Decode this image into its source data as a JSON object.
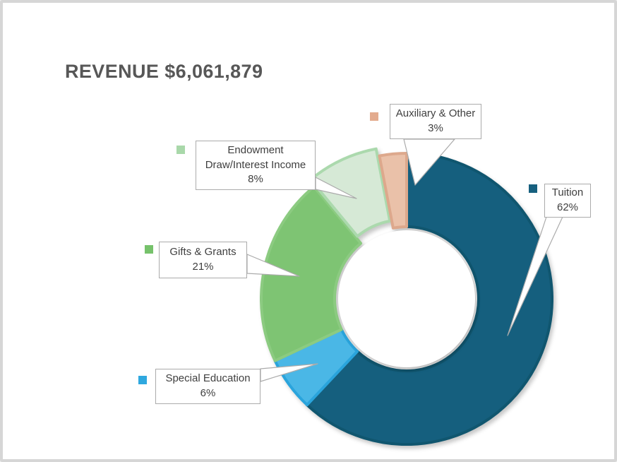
{
  "title": "REVENUE $6,061,879",
  "colors": {
    "title_text": "#575757",
    "callout_border": "#ababab",
    "callout_text": "#3f3f3f",
    "frame_border": "#d6d6d6",
    "background": "#ffffff"
  },
  "chart_data": {
    "type": "pie",
    "subtype": "donut",
    "title": "REVENUE $6,061,879",
    "total_revenue": "$6,061,879",
    "units": "percent",
    "start_angle_deg": 0,
    "clockwise": true,
    "legend_position": "callouts-with-leader-lines",
    "slices": [
      {
        "label": "Tuition",
        "value": 62,
        "pct_label": "62%",
        "fill": "#155f7e",
        "stroke": "#10566f",
        "marker": "#17607f",
        "explode": 0
      },
      {
        "label": "Special Education",
        "value": 6,
        "pct_label": "6%",
        "fill": "#4ab7e6",
        "stroke": "#2aa4dc",
        "marker": "#2fa8df",
        "explode": 0
      },
      {
        "label": "Gifts & Grants",
        "value": 21,
        "pct_label": "21%",
        "fill": "#7ec473",
        "stroke": "#8ccb81",
        "marker": "#76c26b",
        "explode": 0
      },
      {
        "label": "Endowment Draw/Interest Income",
        "value": 8,
        "pct_label": "8%",
        "fill": "#d6e9d6",
        "stroke": "#abd9ad",
        "marker": "#a9d8aa",
        "explode": 11
      },
      {
        "label": "Auxiliary & Other",
        "value": 3,
        "pct_label": "3%",
        "fill": "#eac1a9",
        "stroke": "#dda88c",
        "marker": "#e3ab8e",
        "explode": 0
      }
    ]
  }
}
